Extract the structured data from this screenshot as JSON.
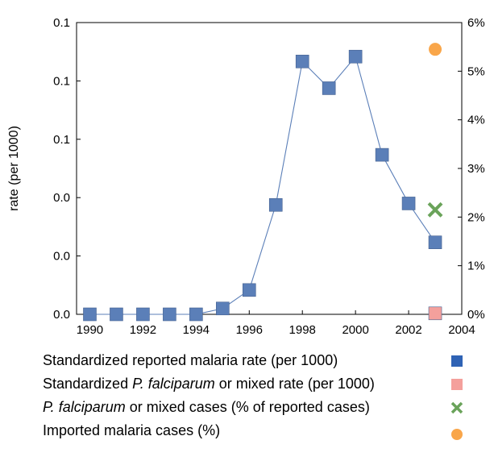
{
  "chart_data": {
    "type": "line",
    "title": "",
    "xlabel": "",
    "ylabel": "rate (per 1000)",
    "xlim": [
      1989.5,
      2004
    ],
    "x_ticks": [
      "1990",
      "1992",
      "1994",
      "1996",
      "1998",
      "2000",
      "2002",
      "2004"
    ],
    "y_left_ticks": [
      "0.0",
      "0.0",
      "0.0",
      "0.1",
      "0.1",
      "0.1"
    ],
    "y_right_ticks": [
      "0%",
      "1%",
      "2%",
      "3%",
      "4%",
      "5%",
      "6%"
    ],
    "ylim_right": [
      0,
      6
    ],
    "grid": false,
    "legend_position": "bottom",
    "series": [
      {
        "name": "Standardized reported malaria rate (per 1000)",
        "axis": "left",
        "marker": "square",
        "color": "#5b7fb8",
        "points": [
          [
            1990,
            0.0
          ],
          [
            1991,
            0.0
          ],
          [
            1992,
            0.0
          ],
          [
            1993,
            0.0
          ],
          [
            1994,
            0.0
          ],
          [
            1995,
            0.12
          ],
          [
            1996,
            0.5
          ],
          [
            1997,
            2.25
          ],
          [
            1998,
            5.2
          ],
          [
            1999,
            4.65
          ],
          [
            2000,
            5.3
          ],
          [
            2001,
            3.28
          ],
          [
            2002,
            2.28
          ],
          [
            2003,
            1.48
          ]
        ]
      },
      {
        "name": "Standardized P. falciparum or mixed rate (per 1000)",
        "axis": "left",
        "marker": "square",
        "color": "#f4a09c",
        "points": [
          [
            2003,
            0.02
          ]
        ]
      },
      {
        "name": "P. falciparum or mixed cases  (% of reported cases)",
        "axis": "right",
        "marker": "x",
        "color": "#6aa35a",
        "points": [
          [
            2003,
            2.15
          ]
        ]
      },
      {
        "name": "Imported malaria cases (%)",
        "axis": "right",
        "marker": "circle",
        "color": "#f9a64a",
        "points": [
          [
            2003,
            5.45
          ]
        ]
      }
    ]
  },
  "legend": {
    "items": [
      {
        "prefix": "Standardized reported malaria rate (per 1000)",
        "italic": "",
        "suffix": "",
        "marker": "square",
        "color": "#2f63b5"
      },
      {
        "prefix": "Standardized ",
        "italic": "P. falciparum",
        "suffix": " or mixed rate (per 1000)",
        "marker": "square",
        "color": "#f4a09c"
      },
      {
        "prefix": "",
        "italic": "P. falciparum",
        "suffix": " or mixed cases  (% of reported cases)",
        "marker": "x",
        "color": "#6aa35a"
      },
      {
        "prefix": "Imported malaria cases (%)",
        "italic": "",
        "suffix": "",
        "marker": "circle",
        "color": "#f9a64a"
      }
    ]
  }
}
